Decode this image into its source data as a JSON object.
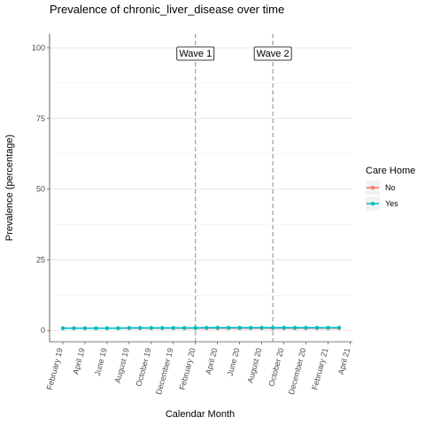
{
  "chart_data": {
    "type": "line",
    "title": "Prevalence of chronic_liver_disease over time",
    "xlabel": "Calendar Month",
    "ylabel": "Prevalence (percentage)",
    "ylim": [
      -4,
      105
    ],
    "yticks": [
      0,
      25,
      50,
      75,
      100
    ],
    "x_tick_labels": [
      "February 19",
      "April 19",
      "June 19",
      "August 19",
      "October 19",
      "December 19",
      "February 20",
      "April 20",
      "June 20",
      "August 20",
      "October 20",
      "December 20",
      "February 21",
      "April 21"
    ],
    "x_tick_index": [
      0,
      2,
      4,
      6,
      8,
      10,
      12,
      14,
      16,
      18,
      20,
      22,
      24,
      26
    ],
    "x_range": [
      -1.2,
      26.2
    ],
    "months": [
      "Feb 19",
      "Mar 19",
      "Apr 19",
      "May 19",
      "Jun 19",
      "Jul 19",
      "Aug 19",
      "Sep 19",
      "Oct 19",
      "Nov 19",
      "Dec 19",
      "Jan 20",
      "Feb 20",
      "Mar 20",
      "Apr 20",
      "May 20",
      "Jun 20",
      "Jul 20",
      "Aug 20",
      "Sep 20",
      "Oct 20",
      "Nov 20",
      "Dec 20",
      "Jan 21",
      "Feb 21",
      "Mar 21"
    ],
    "grid": true,
    "legend": {
      "title": "Care Home",
      "position": "right"
    },
    "series": [
      {
        "name": "No",
        "color": "#F8766D",
        "values": [
          0.8,
          0.8,
          0.8,
          0.8,
          0.8,
          0.8,
          0.8,
          0.8,
          0.8,
          0.8,
          0.8,
          0.8,
          0.8,
          0.8,
          0.8,
          0.8,
          0.8,
          0.8,
          0.8,
          0.8,
          0.8,
          0.8,
          0.8,
          0.8,
          0.8,
          0.8
        ]
      },
      {
        "name": "Yes",
        "color": "#00BFC4",
        "values": [
          0.8,
          0.8,
          0.8,
          0.8,
          0.8,
          0.8,
          0.9,
          0.9,
          0.9,
          0.9,
          0.9,
          0.9,
          0.9,
          1.0,
          1.0,
          1.0,
          1.0,
          1.0,
          1.0,
          1.0,
          1.0,
          1.0,
          1.0,
          1.0,
          1.0,
          1.0
        ]
      }
    ],
    "annotations": [
      {
        "label": "Wave 1",
        "x_index": 12
      },
      {
        "label": "Wave 2",
        "x_index": 19
      }
    ]
  }
}
